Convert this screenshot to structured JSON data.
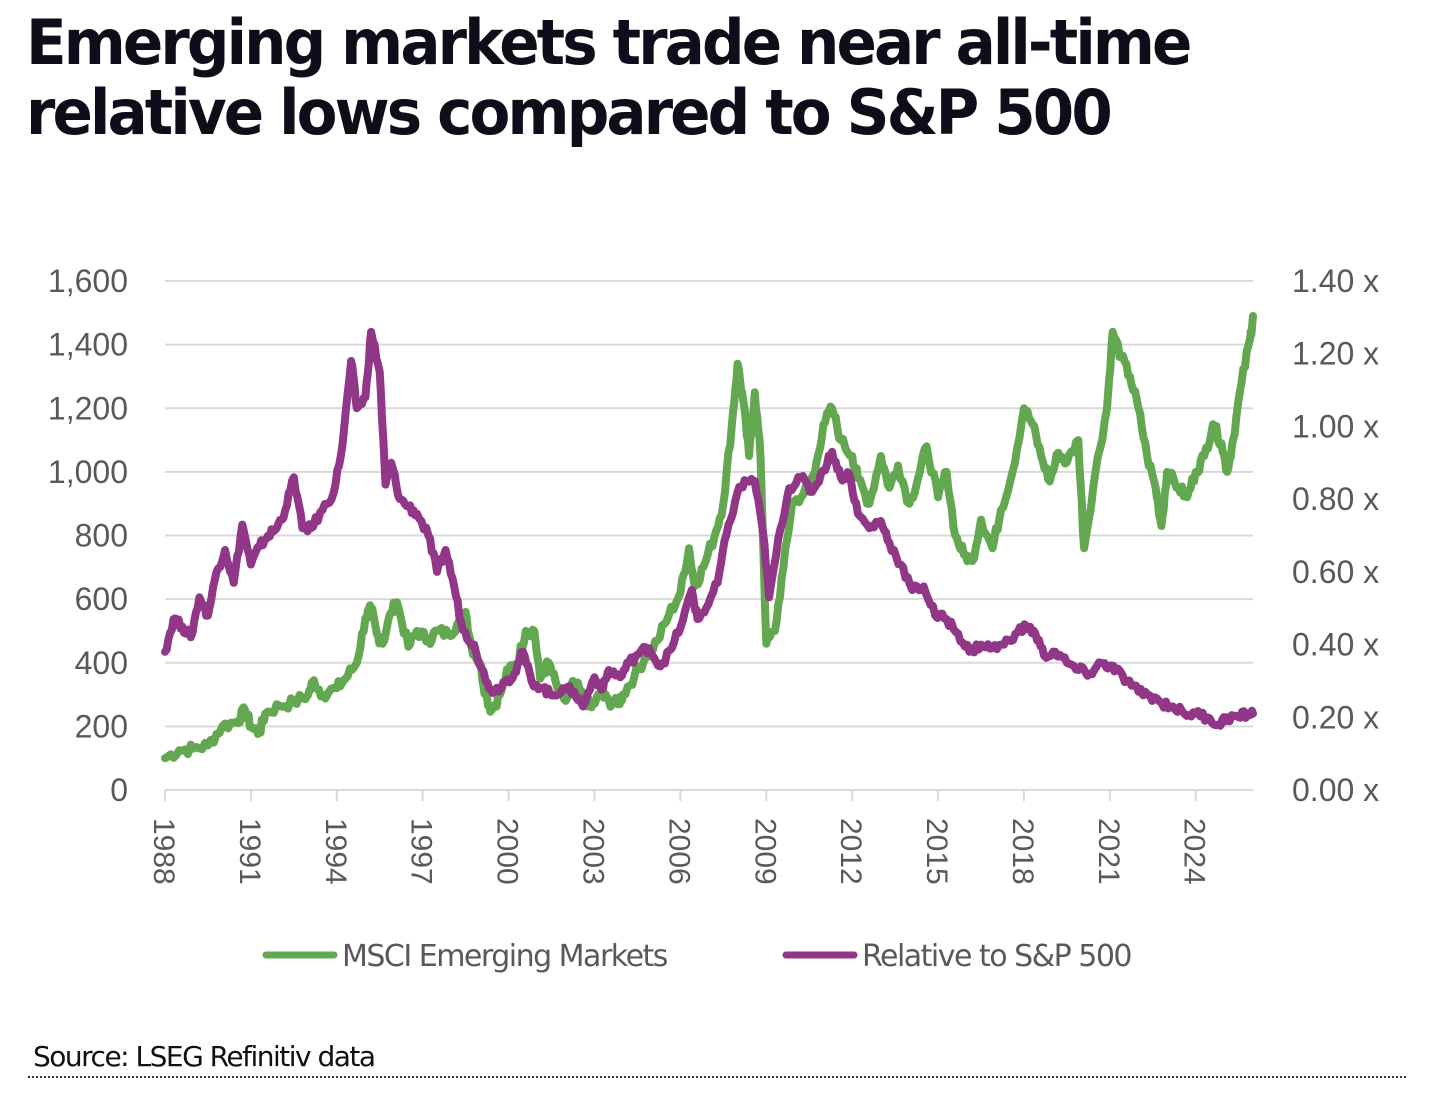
{
  "title": {
    "line1": "Emerging markets trade near all-time",
    "line2": "relative lows compared to S&P 500"
  },
  "source": "Source: LSEG Refinitiv data",
  "colors": {
    "msci": "#63a850",
    "relative": "#923688",
    "grid": "#d9d9d9",
    "axis_text": "#595959"
  },
  "chart_data": {
    "type": "line",
    "title": "Emerging markets trade near all-time relative lows compared to S&P 500",
    "xlabel": "",
    "ylabel": "",
    "y2label": "",
    "xlim": [
      1988,
      2026
    ],
    "ylim": [
      0,
      1600
    ],
    "y2lim": [
      0,
      1.4
    ],
    "grid": true,
    "legend_position": "bottom",
    "x_ticks": [
      "1988",
      "1991",
      "1994",
      "1997",
      "2000",
      "2003",
      "2006",
      "2009",
      "2012",
      "2015",
      "2018",
      "2021",
      "2024"
    ],
    "x_tick_values": [
      1988,
      1991,
      1994,
      1997,
      2000,
      2003,
      2006,
      2009,
      2012,
      2015,
      2018,
      2021,
      2024
    ],
    "y_ticks": [
      "0",
      "200",
      "400",
      "600",
      "800",
      "1,000",
      "1,200",
      "1,400",
      "1,600"
    ],
    "y_tick_values": [
      0,
      200,
      400,
      600,
      800,
      1000,
      1200,
      1400,
      1600
    ],
    "y2_ticks": [
      "0.00 x",
      "0.20 x",
      "0.40 x",
      "0.60 x",
      "0.80 x",
      "1.00 x",
      "1.20 x",
      "1.40 x"
    ],
    "y2_tick_values": [
      0,
      0.2,
      0.4,
      0.6,
      0.8,
      1.0,
      1.2,
      1.4
    ],
    "series": [
      {
        "name": "MSCI Emerging Markets",
        "axis": "left",
        "color": "#63a850",
        "x": [
          1988.0,
          1988.5,
          1989.0,
          1989.5,
          1990.0,
          1990.5,
          1990.8,
          1991.0,
          1991.3,
          1991.5,
          1992.0,
          1992.5,
          1993.0,
          1993.2,
          1993.5,
          1994.0,
          1994.3,
          1994.7,
          1995.0,
          1995.2,
          1995.4,
          1995.6,
          1995.9,
          1996.1,
          1996.5,
          1996.8,
          1997.2,
          1997.5,
          1997.9,
          1998.2,
          1998.5,
          1998.7,
          1999.0,
          1999.2,
          1999.4,
          1999.7,
          2000.0,
          2000.3,
          2000.6,
          2000.9,
          2001.1,
          2001.4,
          2001.7,
          2002.0,
          2002.3,
          2002.6,
          2002.9,
          2003.2,
          2003.5,
          2003.8,
          2004.0,
          2004.4,
          2004.8,
          2005.2,
          2005.6,
          2006.0,
          2006.3,
          2006.5,
          2006.8,
          2007.2,
          2007.5,
          2007.8,
          2008.0,
          2008.2,
          2008.4,
          2008.6,
          2008.8,
          2009.0,
          2009.3,
          2009.6,
          2009.9,
          2010.3,
          2010.7,
          2011.0,
          2011.3,
          2011.6,
          2012.0,
          2012.2,
          2012.6,
          2013.0,
          2013.3,
          2013.6,
          2014.0,
          2014.3,
          2014.6,
          2015.0,
          2015.3,
          2015.6,
          2015.9,
          2016.2,
          2016.5,
          2016.9,
          2017.2,
          2017.6,
          2018.0,
          2018.3,
          2018.6,
          2018.9,
          2019.2,
          2019.5,
          2019.9,
          2020.1,
          2020.5,
          2020.9,
          2021.1,
          2021.4,
          2021.7,
          2022.0,
          2022.3,
          2022.6,
          2022.8,
          2023.0,
          2023.4,
          2023.7,
          2024.0,
          2024.3,
          2024.6,
          2024.9,
          2025.1,
          2025.3,
          2025.6,
          2025.9,
          2026.0
        ],
        "values": [
          100,
          125,
          130,
          140,
          200,
          215,
          250,
          200,
          180,
          240,
          265,
          275,
          300,
          345,
          300,
          320,
          350,
          400,
          540,
          570,
          490,
          460,
          560,
          590,
          450,
          500,
          470,
          500,
          490,
          520,
          560,
          450,
          400,
          300,
          250,
          300,
          380,
          400,
          500,
          500,
          350,
          400,
          320,
          280,
          340,
          290,
          260,
          300,
          280,
          270,
          300,
          360,
          420,
          470,
          550,
          620,
          760,
          640,
          700,
          800,
          900,
          1150,
          1340,
          1220,
          1050,
          1250,
          1050,
          460,
          500,
          700,
          900,
          930,
          1000,
          1150,
          1200,
          1100,
          1050,
          980,
          900,
          1050,
          950,
          1020,
          900,
          980,
          1080,
          920,
          1000,
          800,
          740,
          720,
          850,
          760,
          880,
          1000,
          1200,
          1150,
          1050,
          970,
          1060,
          1030,
          1100,
          760,
          1000,
          1200,
          1440,
          1360,
          1300,
          1200,
          1050,
          950,
          830,
          1000,
          950,
          920,
          1000,
          1050,
          1150,
          1090,
          1000,
          1100,
          1280,
          1420,
          1490
        ]
      },
      {
        "name": "Relative to S&P 500",
        "axis": "right",
        "color": "#923688",
        "x": [
          1988.0,
          1988.3,
          1988.6,
          1988.9,
          1989.2,
          1989.5,
          1989.8,
          1990.1,
          1990.4,
          1990.7,
          1991.0,
          1991.3,
          1991.6,
          1991.9,
          1992.2,
          1992.5,
          1992.8,
          1993.1,
          1993.5,
          1993.9,
          1994.2,
          1994.5,
          1994.7,
          1995.0,
          1995.2,
          1995.5,
          1995.7,
          1995.9,
          1996.2,
          1996.5,
          1996.8,
          1997.2,
          1997.5,
          1997.8,
          1998.1,
          1998.4,
          1998.8,
          1999.2,
          1999.5,
          1999.9,
          2000.2,
          2000.5,
          2000.8,
          2001.2,
          2001.5,
          2001.9,
          2002.3,
          2002.6,
          2003.0,
          2003.3,
          2003.5,
          2003.9,
          2004.2,
          2004.6,
          2004.9,
          2005.3,
          2005.7,
          2006.1,
          2006.4,
          2006.6,
          2006.9,
          2007.3,
          2007.6,
          2008.0,
          2008.3,
          2008.6,
          2008.9,
          2009.1,
          2009.5,
          2009.8,
          2010.2,
          2010.6,
          2011.0,
          2011.3,
          2011.6,
          2011.9,
          2012.2,
          2012.6,
          2013.0,
          2013.3,
          2013.7,
          2014.1,
          2014.5,
          2014.9,
          2015.3,
          2015.7,
          2016.1,
          2016.5,
          2016.9,
          2017.3,
          2017.7,
          2018.1,
          2018.4,
          2018.7,
          2019.1,
          2019.5,
          2019.9,
          2020.3,
          2020.7,
          2021.0,
          2021.2,
          2021.6,
          2022.0,
          2022.4,
          2022.8,
          2023.2,
          2023.6,
          2024.0,
          2024.4,
          2024.8,
          2025.1,
          2025.5,
          2025.8,
          2026.0
        ],
        "values": [
          0.38,
          0.47,
          0.45,
          0.42,
          0.53,
          0.48,
          0.6,
          0.66,
          0.57,
          0.73,
          0.62,
          0.67,
          0.7,
          0.72,
          0.77,
          0.86,
          0.72,
          0.72,
          0.77,
          0.82,
          0.95,
          1.18,
          1.05,
          1.08,
          1.26,
          1.15,
          0.84,
          0.9,
          0.8,
          0.78,
          0.76,
          0.7,
          0.6,
          0.66,
          0.56,
          0.44,
          0.4,
          0.3,
          0.27,
          0.3,
          0.32,
          0.38,
          0.3,
          0.28,
          0.26,
          0.28,
          0.27,
          0.23,
          0.31,
          0.28,
          0.33,
          0.31,
          0.35,
          0.38,
          0.39,
          0.34,
          0.39,
          0.47,
          0.55,
          0.47,
          0.5,
          0.57,
          0.7,
          0.82,
          0.85,
          0.85,
          0.7,
          0.53,
          0.72,
          0.83,
          0.86,
          0.82,
          0.88,
          0.93,
          0.86,
          0.87,
          0.76,
          0.72,
          0.74,
          0.68,
          0.62,
          0.55,
          0.56,
          0.48,
          0.47,
          0.43,
          0.38,
          0.4,
          0.39,
          0.4,
          0.43,
          0.45,
          0.43,
          0.37,
          0.38,
          0.35,
          0.33,
          0.32,
          0.35,
          0.34,
          0.33,
          0.3,
          0.27,
          0.26,
          0.24,
          0.23,
          0.21,
          0.21,
          0.2,
          0.18,
          0.2,
          0.2,
          0.21,
          0.21
        ]
      }
    ]
  }
}
